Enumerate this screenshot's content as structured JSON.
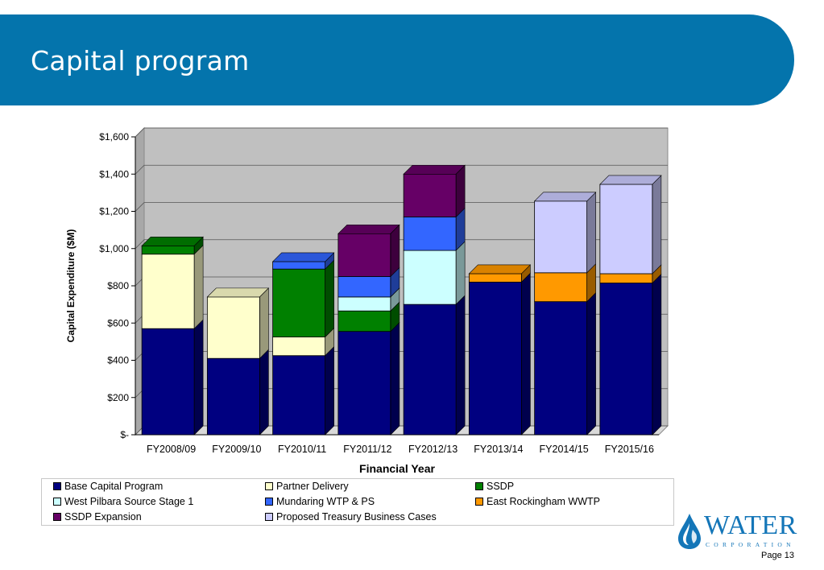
{
  "slide": {
    "title": "Capital program",
    "page_label": "Page 13"
  },
  "logo": {
    "word": "WATER",
    "sub": "CORPORATION"
  },
  "colors": {
    "banner": "#0474ac",
    "plot_wall": "#c0c0c0"
  },
  "chart_data": {
    "type": "bar",
    "stacked": true,
    "three_d": true,
    "categories": [
      "FY2008/09",
      "FY2009/10",
      "FY2010/11",
      "FY2011/12",
      "FY2012/13",
      "FY2013/14",
      "FY2014/15",
      "FY2015/16"
    ],
    "xlabel": "Financial Year",
    "ylabel": "Capital Expenditure ($M)",
    "ylim": [
      0,
      1600
    ],
    "yticks": [
      0,
      200,
      400,
      600,
      800,
      1000,
      1200,
      1400,
      1600
    ],
    "ytick_labels": [
      "$-",
      "$200",
      "$400",
      "$600",
      "$800",
      "$1,000",
      "$1,200",
      "$1,400",
      "$1,600"
    ],
    "grid": true,
    "legend_position": "bottom",
    "series": [
      {
        "name": "Base Capital Program",
        "color": "#000080",
        "values": [
          570,
          410,
          425,
          555,
          700,
          820,
          715,
          815
        ]
      },
      {
        "name": "Partner Delivery",
        "color": "#ffffcc",
        "values": [
          400,
          330,
          100,
          0,
          0,
          0,
          0,
          0
        ]
      },
      {
        "name": "SSDP",
        "color": "#008000",
        "values": [
          45,
          0,
          365,
          110,
          0,
          0,
          0,
          0
        ]
      },
      {
        "name": "West Pilbara Source Stage 1",
        "color": "#ccffff",
        "values": [
          0,
          0,
          0,
          75,
          290,
          0,
          0,
          0
        ]
      },
      {
        "name": "Mundaring WTP & PS",
        "color": "#3366ff",
        "values": [
          0,
          0,
          40,
          110,
          180,
          0,
          0,
          0
        ]
      },
      {
        "name": "East Rockingham WWTP",
        "color": "#ff9900",
        "values": [
          0,
          0,
          0,
          0,
          0,
          45,
          155,
          50
        ]
      },
      {
        "name": "SSDP Expansion",
        "color": "#660066",
        "values": [
          0,
          0,
          0,
          230,
          230,
          0,
          0,
          0
        ]
      },
      {
        "name": "Proposed Treasury Business Cases",
        "color": "#ccccff",
        "values": [
          0,
          0,
          0,
          0,
          0,
          0,
          385,
          480
        ]
      }
    ]
  }
}
